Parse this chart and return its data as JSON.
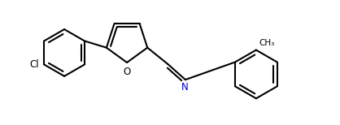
{
  "background_color": "#ffffff",
  "line_color": "#000000",
  "label_color_N": "#0000cd",
  "line_width": 1.5,
  "figsize": [
    4.18,
    1.54
  ],
  "dpi": 100,
  "xlim": [
    0,
    8.5
  ],
  "ylim": [
    0,
    3.2
  ]
}
